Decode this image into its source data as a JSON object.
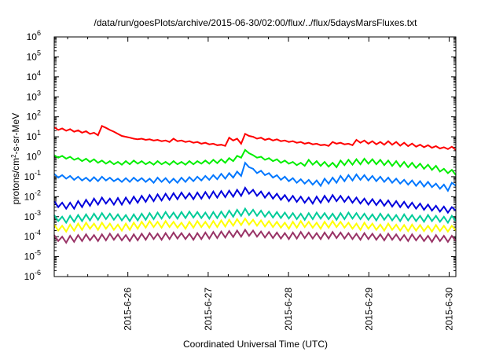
{
  "chart_data": {
    "type": "line",
    "title": "/data/run/goesPlots/archive/2015-06-30/02:00/flux/../flux/5daysMarsFluxes.txt",
    "xlabel": "Coordinated Universal Time (UTC)",
    "ylabel_parts": {
      "prefix": "protons/cm",
      "exponent": "2",
      "suffix": "-s-sr-MeV"
    },
    "y_scale": "log",
    "ylim": [
      1e-06,
      1000000.0
    ],
    "y_ticks": [
      {
        "value": 1e-06,
        "base": "10",
        "exp": "-6"
      },
      {
        "value": 1e-05,
        "base": "10",
        "exp": "-5"
      },
      {
        "value": 0.0001,
        "base": "10",
        "exp": "-4"
      },
      {
        "value": 0.001,
        "base": "10",
        "exp": "-3"
      },
      {
        "value": 0.01,
        "base": "10",
        "exp": "-2"
      },
      {
        "value": 0.1,
        "base": "10",
        "exp": "-1"
      },
      {
        "value": 1,
        "base": "10",
        "exp": "0"
      },
      {
        "value": 10,
        "base": "10",
        "exp": "1"
      },
      {
        "value": 100,
        "base": "10",
        "exp": "2"
      },
      {
        "value": 1000,
        "base": "10",
        "exp": "3"
      },
      {
        "value": 10000,
        "base": "10",
        "exp": "4"
      },
      {
        "value": 100000,
        "base": "10",
        "exp": "5"
      },
      {
        "value": 1000000,
        "base": "10",
        "exp": "6"
      }
    ],
    "xlim": [
      "2015-06-25 02:00",
      "2015-06-30 02:00"
    ],
    "x_ticks": [
      "2015-6-26",
      "2015-6-27",
      "2015-6-28",
      "2015-6-29",
      "2015-6-30"
    ],
    "grid": false,
    "legend": "none",
    "sample_interval_hours": 2,
    "series": [
      {
        "color": "#ff0000",
        "values": [
          30,
          22,
          26,
          20,
          24,
          18,
          21,
          16,
          19,
          14,
          16,
          12,
          35,
          28,
          22,
          18,
          14,
          11,
          10,
          9,
          8,
          7.5,
          8,
          7,
          7.5,
          6.5,
          7,
          6,
          6.5,
          5.5,
          8,
          6,
          6.5,
          5.5,
          6,
          5,
          5.5,
          4.5,
          5,
          4.2,
          4.5,
          3.8,
          4,
          3.5,
          9,
          6.5,
          8,
          4.5,
          14,
          11,
          10,
          8,
          9,
          7,
          8,
          6.5,
          7.5,
          6,
          6.5,
          5.5,
          6,
          5,
          5.5,
          4.5,
          5,
          4.2,
          4.5,
          3.8,
          4,
          3.5,
          5.5,
          4.5,
          5,
          4.2,
          4.5,
          3.8,
          7,
          5,
          6.5,
          4.5,
          6,
          4.2,
          5.5,
          4,
          6,
          4,
          5.5,
          3.6,
          5,
          3.4,
          4.6,
          3.2,
          4,
          3,
          3.8,
          2.8,
          3.4,
          2.6,
          3,
          2.4,
          3.2,
          2.2
        ]
      },
      {
        "color": "#00ee00",
        "values": [
          1.2,
          0.9,
          1.1,
          0.8,
          1,
          0.7,
          0.85,
          0.6,
          0.8,
          0.55,
          0.75,
          0.5,
          0.65,
          0.45,
          0.6,
          0.42,
          0.55,
          0.4,
          0.6,
          0.42,
          0.65,
          0.45,
          0.6,
          0.42,
          0.55,
          0.4,
          0.6,
          0.42,
          0.55,
          0.4,
          0.6,
          0.42,
          0.55,
          0.4,
          0.6,
          0.42,
          0.6,
          0.45,
          0.65,
          0.45,
          0.7,
          0.48,
          0.75,
          0.5,
          0.85,
          0.6,
          1.1,
          0.9,
          2.2,
          1.5,
          1.2,
          0.9,
          1,
          0.7,
          0.85,
          0.6,
          0.75,
          0.5,
          0.65,
          0.45,
          0.55,
          0.38,
          0.5,
          0.35,
          0.7,
          0.4,
          0.6,
          0.35,
          0.55,
          0.32,
          0.5,
          0.3,
          0.65,
          0.38,
          0.7,
          0.4,
          0.75,
          0.42,
          0.8,
          0.45,
          0.75,
          0.42,
          0.7,
          0.38,
          0.65,
          0.35,
          0.6,
          0.32,
          0.55,
          0.3,
          0.5,
          0.28,
          0.45,
          0.25,
          0.4,
          0.22,
          0.35,
          0.18,
          0.25,
          0.15,
          0.22,
          0.12
        ]
      },
      {
        "color": "#0077ff",
        "values": [
          0.14,
          0.09,
          0.12,
          0.08,
          0.11,
          0.07,
          0.1,
          0.065,
          0.09,
          0.06,
          0.095,
          0.06,
          0.1,
          0.065,
          0.09,
          0.06,
          0.08,
          0.055,
          0.085,
          0.055,
          0.09,
          0.06,
          0.085,
          0.055,
          0.08,
          0.05,
          0.09,
          0.055,
          0.085,
          0.05,
          0.08,
          0.05,
          0.09,
          0.055,
          0.095,
          0.06,
          0.1,
          0.065,
          0.11,
          0.07,
          0.12,
          0.075,
          0.14,
          0.08,
          0.15,
          0.09,
          0.18,
          0.11,
          0.5,
          0.3,
          0.25,
          0.15,
          0.2,
          0.12,
          0.15,
          0.09,
          0.12,
          0.07,
          0.1,
          0.06,
          0.085,
          0.05,
          0.075,
          0.045,
          0.07,
          0.04,
          0.065,
          0.035,
          0.08,
          0.045,
          0.09,
          0.05,
          0.11,
          0.06,
          0.12,
          0.065,
          0.13,
          0.07,
          0.12,
          0.065,
          0.11,
          0.06,
          0.1,
          0.055,
          0.09,
          0.05,
          0.08,
          0.045,
          0.07,
          0.04,
          0.065,
          0.035,
          0.06,
          0.032,
          0.055,
          0.03,
          0.045,
          0.025,
          0.04,
          0.02,
          0.05,
          0.035
        ]
      },
      {
        "color": "#0000dd",
        "values": [
          0.006,
          0.003,
          0.005,
          0.0025,
          0.005,
          0.0025,
          0.006,
          0.003,
          0.007,
          0.0035,
          0.008,
          0.004,
          0.009,
          0.0045,
          0.008,
          0.004,
          0.0085,
          0.004,
          0.009,
          0.0045,
          0.01,
          0.005,
          0.011,
          0.0055,
          0.012,
          0.006,
          0.013,
          0.0065,
          0.014,
          0.007,
          0.015,
          0.0075,
          0.016,
          0.008,
          0.015,
          0.0075,
          0.016,
          0.008,
          0.017,
          0.0085,
          0.018,
          0.009,
          0.019,
          0.0095,
          0.02,
          0.01,
          0.022,
          0.011,
          0.028,
          0.014,
          0.022,
          0.011,
          0.018,
          0.009,
          0.016,
          0.008,
          0.014,
          0.007,
          0.012,
          0.006,
          0.011,
          0.0055,
          0.01,
          0.005,
          0.009,
          0.0045,
          0.01,
          0.005,
          0.011,
          0.0055,
          0.012,
          0.006,
          0.011,
          0.0055,
          0.01,
          0.005,
          0.009,
          0.0045,
          0.008,
          0.004,
          0.0075,
          0.0038,
          0.007,
          0.0035,
          0.0065,
          0.0032,
          0.006,
          0.003,
          0.0055,
          0.0028,
          0.005,
          0.0025,
          0.0045,
          0.0022,
          0.004,
          0.002,
          0.0035,
          0.0018,
          0.0032,
          0.0016,
          0.003,
          0.002
        ]
      },
      {
        "color": "#00cc99",
        "values": [
          0.0012,
          0.0006,
          0.001,
          0.0005,
          0.0011,
          0.00055,
          0.0012,
          0.0006,
          0.0013,
          0.00065,
          0.0014,
          0.0007,
          0.0015,
          0.00075,
          0.0014,
          0.0007,
          0.0013,
          0.00065,
          0.0012,
          0.0006,
          0.0013,
          0.00065,
          0.0014,
          0.0007,
          0.0015,
          0.00075,
          0.0016,
          0.0008,
          0.0017,
          0.00085,
          0.0016,
          0.0008,
          0.0017,
          0.00085,
          0.0018,
          0.0009,
          0.0017,
          0.00085,
          0.0016,
          0.0008,
          0.0017,
          0.00085,
          0.0018,
          0.0009,
          0.002,
          0.001,
          0.0022,
          0.0011,
          0.0025,
          0.0012,
          0.0022,
          0.0011,
          0.002,
          0.001,
          0.0018,
          0.0009,
          0.0017,
          0.00085,
          0.0016,
          0.0008,
          0.0015,
          0.00075,
          0.0014,
          0.0007,
          0.0015,
          0.00075,
          0.0016,
          0.0008,
          0.0015,
          0.00075,
          0.0014,
          0.0007,
          0.0015,
          0.00075,
          0.0016,
          0.0008,
          0.0015,
          0.00075,
          0.0014,
          0.0007,
          0.0013,
          0.00065,
          0.0014,
          0.0007,
          0.0013,
          0.00065,
          0.0012,
          0.0006,
          0.0013,
          0.00065,
          0.0012,
          0.0006,
          0.0011,
          0.00055,
          0.0012,
          0.0006,
          0.0011,
          0.00055,
          0.001,
          0.0005,
          0.0011,
          0.0006
        ]
      },
      {
        "color": "#ffff00",
        "values": [
          0.0004,
          0.0002,
          0.00035,
          0.00018,
          0.0004,
          0.0002,
          0.00045,
          0.00022,
          0.0005,
          0.00025,
          0.00045,
          0.00022,
          0.0005,
          0.00025,
          0.00045,
          0.00022,
          0.0004,
          0.0002,
          0.00045,
          0.00022,
          0.0005,
          0.00025,
          0.00055,
          0.00028,
          0.0006,
          0.0003,
          0.00055,
          0.00028,
          0.0006,
          0.0003,
          0.00055,
          0.00028,
          0.0005,
          0.00025,
          0.00055,
          0.00028,
          0.0006,
          0.0003,
          0.00055,
          0.00028,
          0.0006,
          0.0003,
          0.00065,
          0.00032,
          0.0007,
          0.00035,
          0.00075,
          0.00038,
          0.0008,
          0.0004,
          0.0007,
          0.00035,
          0.00065,
          0.00032,
          0.0006,
          0.0003,
          0.00055,
          0.00028,
          0.0005,
          0.00025,
          0.00055,
          0.00028,
          0.0006,
          0.0003,
          0.00055,
          0.00028,
          0.0005,
          0.00025,
          0.00055,
          0.00028,
          0.0006,
          0.0003,
          0.00055,
          0.00028,
          0.0005,
          0.00025,
          0.00045,
          0.00022,
          0.0005,
          0.00025,
          0.00045,
          0.00022,
          0.0004,
          0.0002,
          0.00045,
          0.00022,
          0.0004,
          0.0002,
          0.00038,
          0.00019,
          0.0004,
          0.0002,
          0.00038,
          0.00019,
          0.00035,
          0.00018,
          0.00038,
          0.00019,
          0.00035,
          0.00018,
          0.00035,
          0.0002
        ]
      },
      {
        "color": "#993366",
        "values": [
          0.00012,
          6e-05,
          0.0001,
          5e-05,
          0.00011,
          5.5e-05,
          0.00012,
          6e-05,
          0.00013,
          6.5e-05,
          0.00012,
          6e-05,
          0.00013,
          6.5e-05,
          0.00014,
          7e-05,
          0.00013,
          6.5e-05,
          0.00012,
          6e-05,
          0.00013,
          6.5e-05,
          0.00014,
          7e-05,
          0.00015,
          7.5e-05,
          0.00014,
          7e-05,
          0.00015,
          7.5e-05,
          0.00016,
          8e-05,
          0.00015,
          7.5e-05,
          0.00014,
          7e-05,
          0.00015,
          7.5e-05,
          0.00016,
          8e-05,
          0.00017,
          8.5e-05,
          0.00018,
          9e-05,
          0.00019,
          9.5e-05,
          0.0002,
          0.0001,
          0.00022,
          0.00011,
          0.0002,
          0.0001,
          0.00018,
          9e-05,
          0.00017,
          8.5e-05,
          0.00016,
          8e-05,
          0.00015,
          7.5e-05,
          0.00016,
          8e-05,
          0.00017,
          8.5e-05,
          0.00016,
          8e-05,
          0.00015,
          7.5e-05,
          0.00016,
          8e-05,
          0.00017,
          8.5e-05,
          0.00016,
          8e-05,
          0.00015,
          7.5e-05,
          0.00014,
          7e-05,
          0.00015,
          7.5e-05,
          0.00014,
          7e-05,
          0.00013,
          6.5e-05,
          0.00014,
          7e-05,
          0.00013,
          6.5e-05,
          0.00012,
          6e-05,
          0.00013,
          6.5e-05,
          0.00012,
          6e-05,
          0.00011,
          5.5e-05,
          0.00012,
          6e-05,
          0.00011,
          5.5e-05,
          0.00011,
          6e-05
        ]
      }
    ]
  }
}
